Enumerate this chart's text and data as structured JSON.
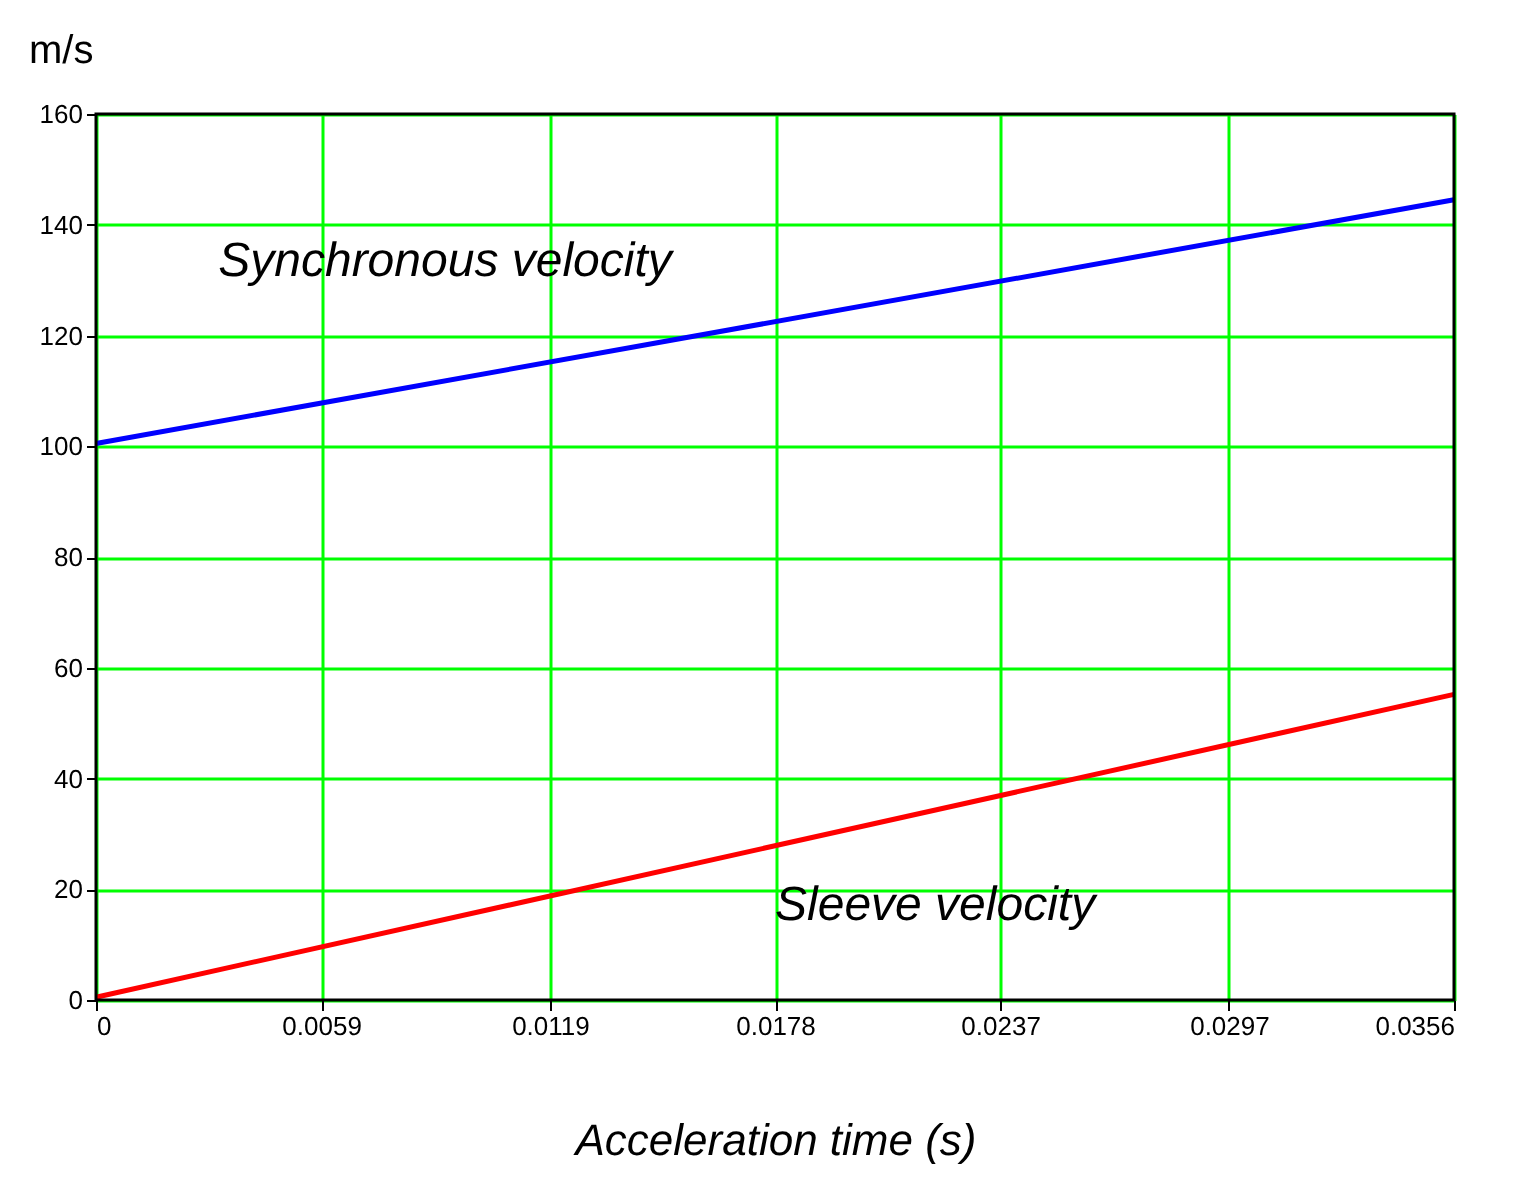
{
  "chart_data": {
    "type": "line",
    "xlabel": "Acceleration time (s)",
    "ylabel": "m/s",
    "x": [
      0,
      0.0356
    ],
    "series": [
      {
        "name": "Synchronous   velocity",
        "color": "#0000ff",
        "values": [
          100.5,
          144.5
        ]
      },
      {
        "name": "Sleeve  velocity",
        "color": "#ff0000",
        "values": [
          0.5,
          55.2
        ]
      }
    ],
    "xlim": [
      0,
      0.0356
    ],
    "xticks": [
      0,
      0.0059,
      0.0119,
      0.0178,
      0.0237,
      0.0297,
      0.0356
    ],
    "ylim": [
      0,
      160
    ],
    "yticks": [
      0,
      20,
      40,
      60,
      80,
      100,
      120,
      140,
      160
    ],
    "grid": true,
    "legend": false,
    "marker": "none",
    "line_style": "solid"
  }
}
